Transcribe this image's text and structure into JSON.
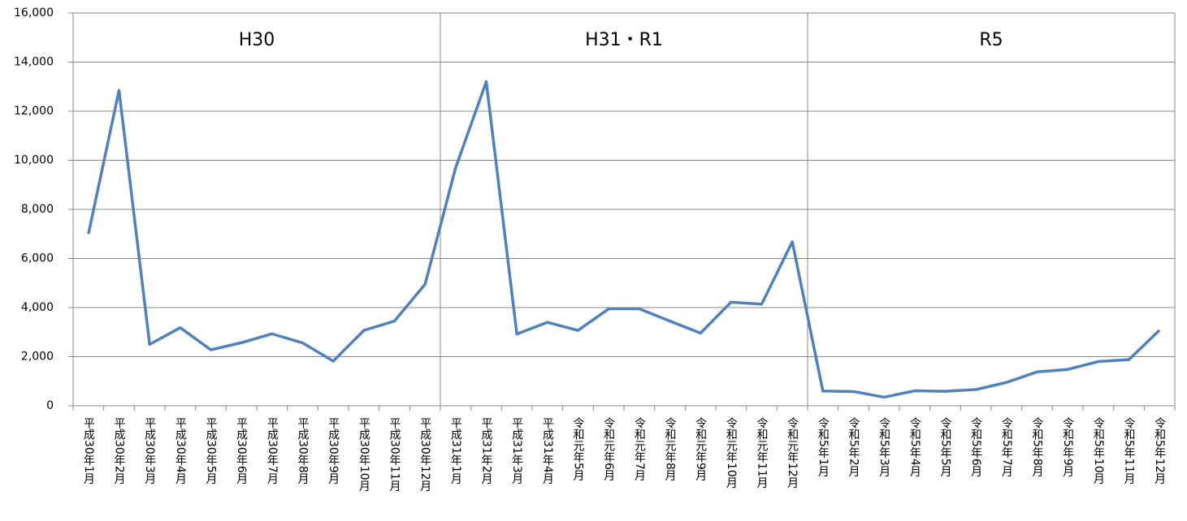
{
  "chart_data": {
    "type": "line",
    "sections": [
      "H30",
      "H31・R1",
      "R5"
    ],
    "categories": [
      "平成30年1月",
      "平成30年2月",
      "平成30年3月",
      "平成30年4月",
      "平成30年5月",
      "平成30年6月",
      "平成30年7月",
      "平成30年8月",
      "平成30年9月",
      "平成30年10月",
      "平成30年11月",
      "平成30年12月",
      "平成31年1月",
      "平成31年2月",
      "平成31年3月",
      "平成31年4月",
      "令和元年5月",
      "令和元年6月",
      "令和元年7月",
      "令和元年8月",
      "令和元年9月",
      "令和元年10月",
      "令和元年11月",
      "令和元年12月",
      "令和5年1月",
      "令和5年2月",
      "令和5年3月",
      "令和5年4月",
      "令和5年5月",
      "令和5年6月",
      "令和5年7月",
      "令和5年8月",
      "令和5年9月",
      "令和5年10月",
      "令和5年11月",
      "令和5年12月"
    ],
    "values": [
      7000,
      12850,
      2500,
      3180,
      2280,
      2570,
      2930,
      2560,
      1820,
      3070,
      3450,
      4950,
      9700,
      13200,
      2920,
      3400,
      3070,
      3950,
      3950,
      3450,
      2960,
      4220,
      4140,
      6680,
      600,
      580,
      350,
      610,
      590,
      660,
      950,
      1380,
      1480,
      1800,
      1880,
      3080
    ],
    "color": "#4f81bd",
    "ylim": [
      0,
      16000
    ],
    "yticks": [
      0,
      {
        "value": 2000,
        "label": "2,000"
      },
      {
        "value": 4000,
        "label": "4,000"
      },
      {
        "value": 6000,
        "label": "6,000"
      },
      {
        "value": 8000,
        "label": "8,000"
      },
      {
        "value": 10000,
        "label": "10,000"
      },
      {
        "value": 12000,
        "label": "12,000"
      },
      {
        "value": 14000,
        "label": "14,000"
      },
      {
        "value": 16000,
        "label": "16,000"
      }
    ],
    "grid": true
  }
}
